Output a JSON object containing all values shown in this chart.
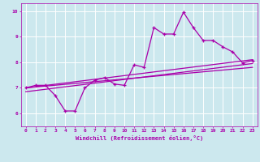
{
  "xlabel": "Windchill (Refroidissement éolien,°C)",
  "ylabel": "",
  "xlim": [
    -0.5,
    23.5
  ],
  "ylim": [
    5.5,
    10.3
  ],
  "xticks": [
    0,
    1,
    2,
    3,
    4,
    5,
    6,
    7,
    8,
    9,
    10,
    11,
    12,
    13,
    14,
    15,
    16,
    17,
    18,
    19,
    20,
    21,
    22,
    23
  ],
  "yticks": [
    6,
    7,
    8,
    9,
    10
  ],
  "background_color": "#cce8ee",
  "line_color": "#aa00aa",
  "grid_color": "#ffffff",
  "series1_x": [
    0,
    1,
    2,
    3,
    4,
    5,
    6,
    7,
    8,
    9,
    10,
    11,
    12,
    13,
    14,
    15,
    16,
    17,
    18,
    19,
    20,
    21,
    22,
    23
  ],
  "series1_y": [
    7.0,
    7.1,
    7.1,
    6.7,
    6.1,
    6.1,
    7.0,
    7.3,
    7.4,
    7.15,
    7.1,
    7.9,
    7.8,
    9.35,
    9.1,
    9.1,
    9.95,
    9.35,
    8.85,
    8.85,
    8.6,
    8.4,
    7.97,
    8.07
  ],
  "series2_x": [
    0,
    23
  ],
  "series2_y": [
    7.0,
    8.1
  ],
  "series3_x": [
    0,
    23
  ],
  "series3_y": [
    7.0,
    7.8
  ],
  "series4_x": [
    0,
    23
  ],
  "series4_y": [
    6.85,
    7.95
  ]
}
